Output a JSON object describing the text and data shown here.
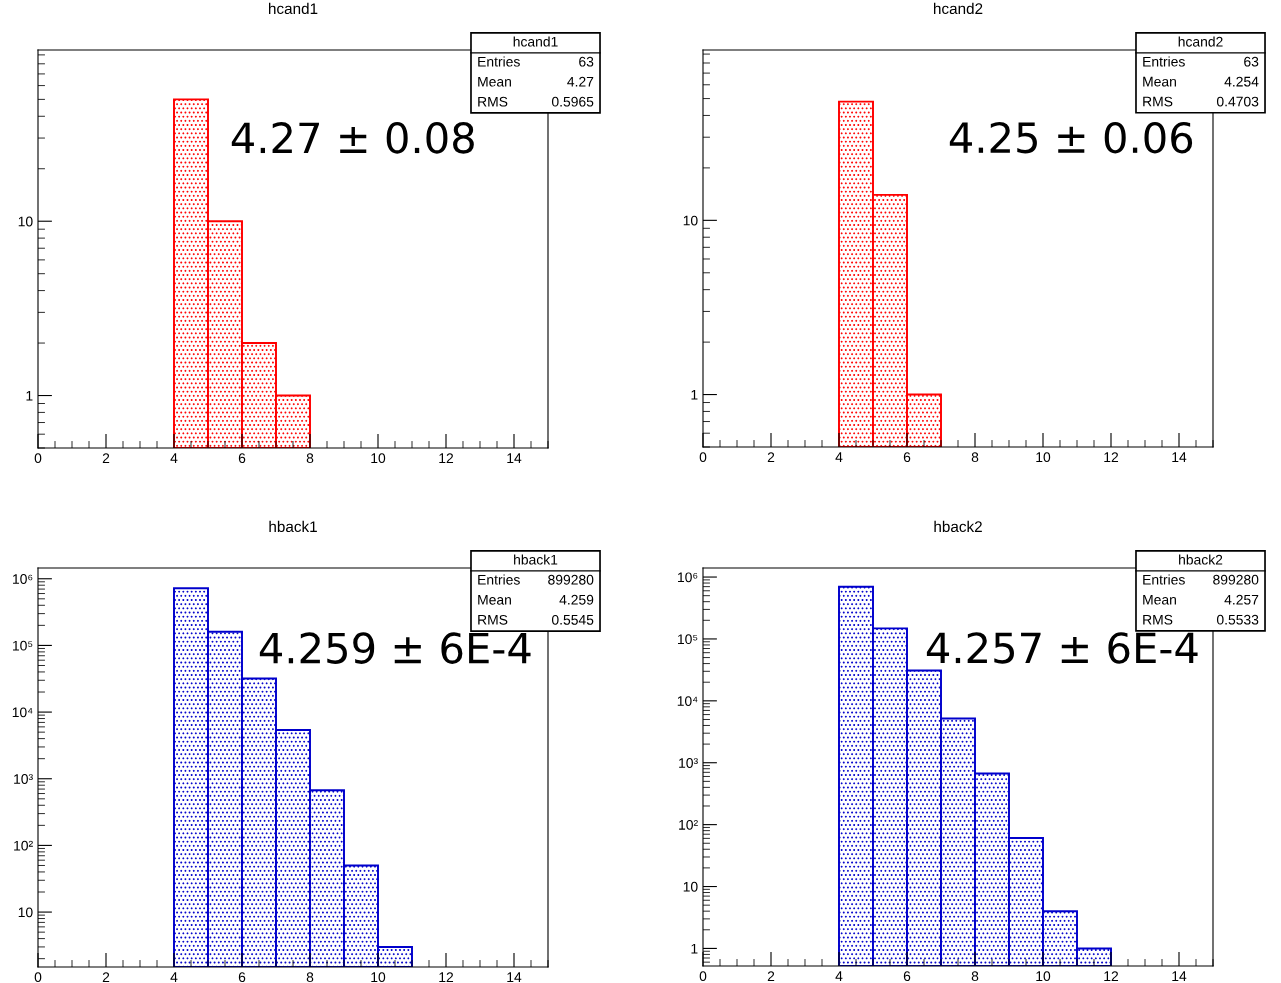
{
  "chart_data": [
    {
      "type": "histogram",
      "title": "hcand1",
      "bins": [
        4,
        5,
        6,
        7,
        8
      ],
      "values": [
        50,
        10,
        2,
        1
      ],
      "color": "#ff0000",
      "log": "y",
      "xlim": [
        0,
        15
      ],
      "xticks": [
        0,
        2,
        4,
        6,
        8,
        10,
        12,
        14
      ],
      "ylim": [
        0.5,
        96
      ],
      "yticks": [
        1,
        10
      ],
      "grid": false,
      "legend": false,
      "annotations": [
        "hcand1",
        "Entries",
        "63",
        "Mean",
        "4.27",
        "RMS",
        "0.5965",
        "4.27 ± 0.08"
      ]
    },
    {
      "type": "histogram",
      "title": "hcand2",
      "bins": [
        4,
        5,
        6,
        7
      ],
      "values": [
        48,
        14,
        1
      ],
      "color": "#ff0000",
      "log": "y",
      "xlim": [
        0,
        15
      ],
      "xticks": [
        0,
        2,
        4,
        6,
        8,
        10,
        12,
        14
      ],
      "ylim": [
        0.5,
        95
      ],
      "yticks": [
        1,
        10
      ],
      "grid": false,
      "legend": false,
      "annotations": [
        "hcand2",
        "Entries",
        "63",
        "Mean",
        "4.254",
        "RMS",
        "0.4703",
        "4.25 ± 0.06"
      ]
    },
    {
      "type": "histogram",
      "title": "hback1",
      "bins": [
        4,
        5,
        6,
        7,
        8,
        9,
        10,
        11
      ],
      "values": [
        720000,
        160000,
        32000,
        5400,
        670,
        50,
        3
      ],
      "color": "#0000cc",
      "log": "y",
      "xlim": [
        0,
        15
      ],
      "xticks": [
        0,
        2,
        4,
        6,
        8,
        10,
        12,
        14
      ],
      "ylim": [
        1.5,
        1450000
      ],
      "yticks": [
        10,
        {
          "value": 100,
          "label": "10²"
        },
        {
          "value": 1000,
          "label": "10³"
        },
        {
          "value": 10000,
          "label": "10⁴"
        },
        {
          "value": 100000,
          "label": "10⁵"
        },
        {
          "value": 1000000,
          "label": "10⁶"
        }
      ],
      "grid": false,
      "legend": false,
      "annotations": [
        "hback1",
        "Entries",
        "899280",
        "Mean",
        "4.259",
        "RMS",
        "0.5545",
        "4.259 ± 6E-4"
      ]
    },
    {
      "type": "histogram",
      "title": "hback2",
      "bins": [
        4,
        5,
        6,
        7,
        8,
        9,
        10,
        11,
        12
      ],
      "values": [
        695000,
        148000,
        31000,
        5200,
        670,
        61,
        4,
        1
      ],
      "color": "#0000cc",
      "log": "y",
      "xlim": [
        0,
        15
      ],
      "xticks": [
        0,
        2,
        4,
        6,
        8,
        10,
        12,
        14
      ],
      "ylim": [
        0.52,
        1400000
      ],
      "yticks": [
        1,
        10,
        {
          "value": 100,
          "label": "10²"
        },
        {
          "value": 1000,
          "label": "10³"
        },
        {
          "value": 10000,
          "label": "10⁴"
        },
        {
          "value": 100000,
          "label": "10⁵"
        },
        {
          "value": 1000000,
          "label": "10⁶"
        }
      ],
      "grid": false,
      "legend": false,
      "annotations": [
        "hback2",
        "Entries",
        "899280",
        "Mean",
        "4.257",
        "RMS",
        "0.5533",
        "4.257 ± 6E-4"
      ]
    }
  ]
}
